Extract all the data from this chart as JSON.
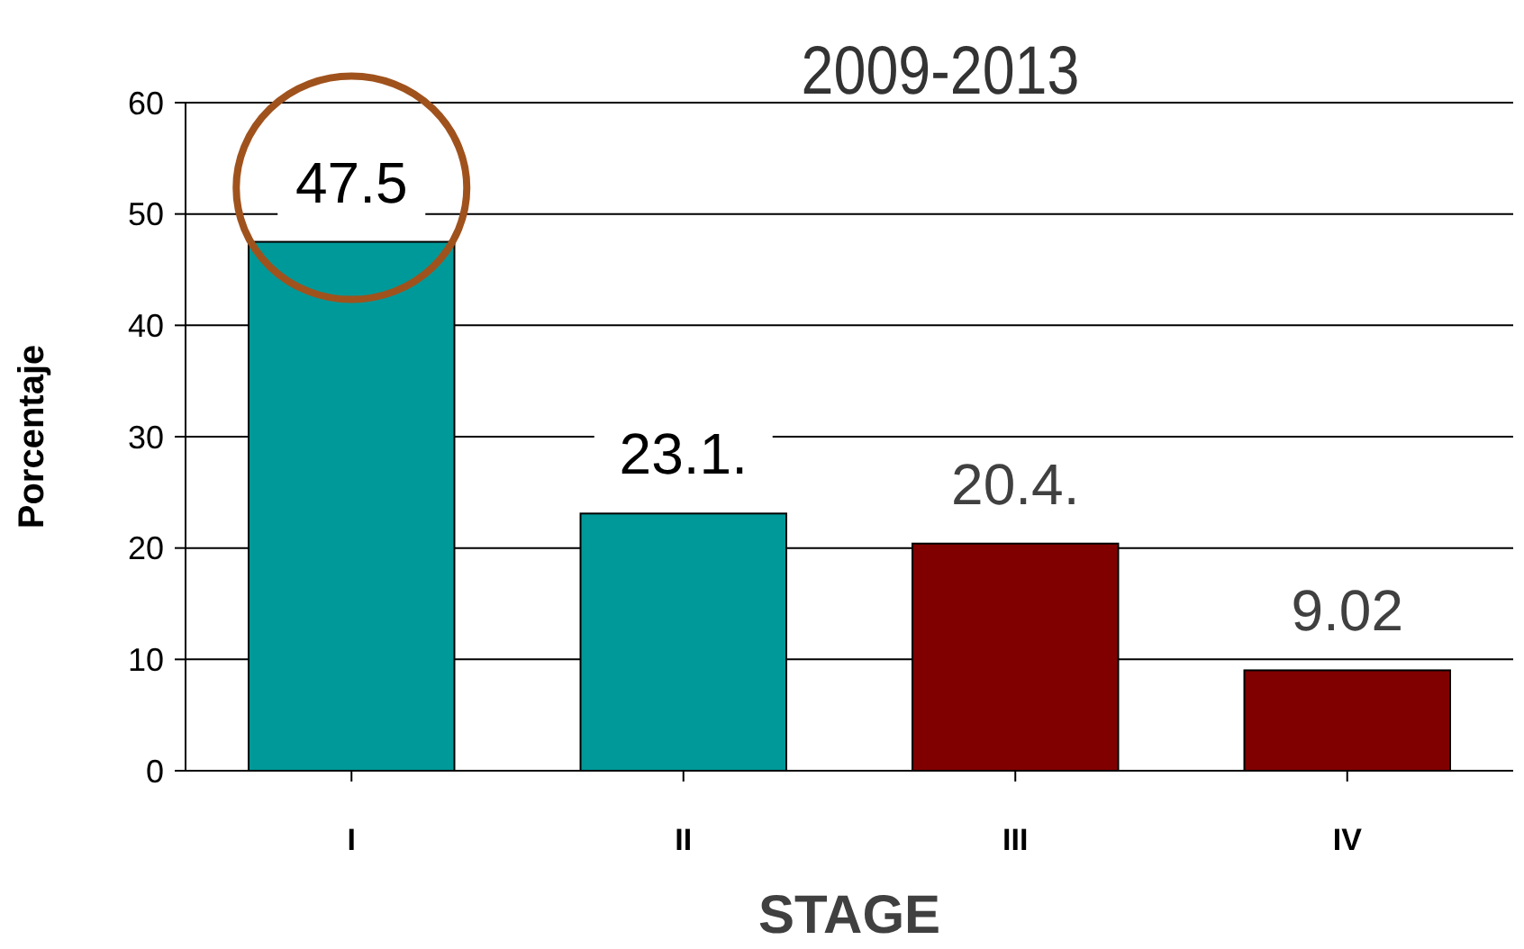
{
  "chart_data": {
    "type": "bar",
    "title": "2009-2013",
    "xlabel": "STAGE",
    "ylabel": "Porcentaje",
    "categories": [
      "I",
      "II",
      "III",
      "IV"
    ],
    "values": [
      47.5,
      23.1,
      20.4,
      9.02
    ],
    "value_labels": [
      "47.5",
      "23.1.",
      "20.4.",
      "9.02"
    ],
    "colors": [
      "#009999",
      "#009999",
      "#800000",
      "#800000"
    ],
    "ylim": [
      0,
      60
    ],
    "yticks": [
      0,
      10,
      20,
      30,
      40,
      50,
      60
    ],
    "grid": "y"
  }
}
